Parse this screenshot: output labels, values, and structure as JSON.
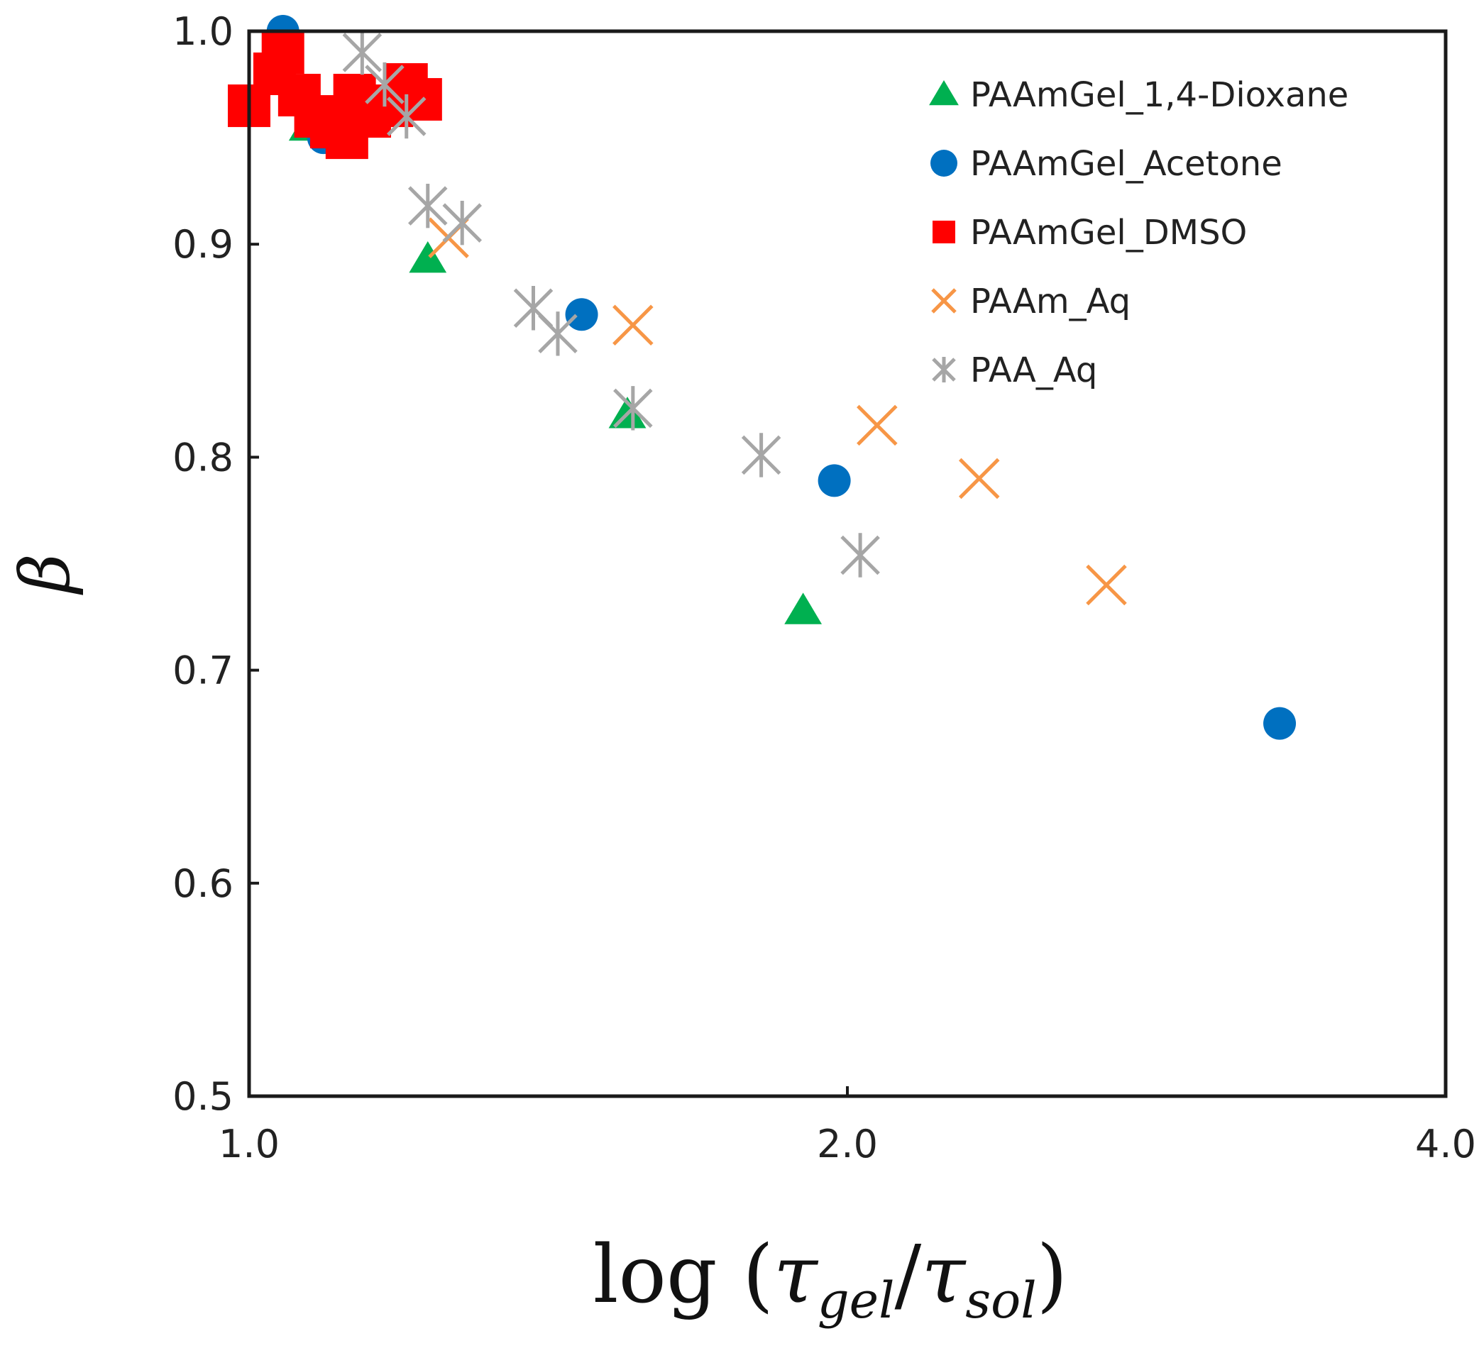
{
  "chart_data": {
    "type": "scatter",
    "x_scale": "log",
    "xlim": [
      1.0,
      4.0
    ],
    "ylim": [
      0.5,
      1.0
    ],
    "x_ticks": [
      1.0,
      2.0,
      4.0
    ],
    "x_tick_labels": [
      "1.0",
      "2.0",
      "4.0"
    ],
    "y_ticks": [
      0.5,
      0.6,
      0.7,
      0.8,
      0.9,
      1.0
    ],
    "y_tick_labels": [
      "0.5",
      "0.6",
      "0.7",
      "0.8",
      "0.9",
      "1.0"
    ],
    "xlabel": {
      "prefix": "log (",
      "tau1": "τ",
      "sub1": "gel",
      "slash": "/",
      "tau2": "τ",
      "sub2": "sol",
      "suffix": ")"
    },
    "ylabel": "β",
    "legend_position": "top-right",
    "series": [
      {
        "name": "PAAmGel_1,4-Dioxane",
        "marker": "triangle",
        "color": "#00b050",
        "points": [
          [
            1.07,
            0.955
          ],
          [
            1.23,
            0.893
          ],
          [
            1.55,
            0.82
          ],
          [
            1.9,
            0.728
          ]
        ]
      },
      {
        "name": "PAAmGel_Acetone",
        "marker": "circle",
        "color": "#0070c0",
        "points": [
          [
            1.04,
            1.0
          ],
          [
            1.09,
            0.95
          ],
          [
            1.13,
            0.965
          ],
          [
            1.47,
            0.867
          ],
          [
            1.97,
            0.789
          ],
          [
            3.3,
            0.675
          ]
        ]
      },
      {
        "name": "PAAmGel_DMSO",
        "marker": "square",
        "color": "#ff0000",
        "points": [
          [
            1.0,
            0.965
          ],
          [
            1.03,
            0.98
          ],
          [
            1.04,
            0.99
          ],
          [
            1.06,
            0.97
          ],
          [
            1.08,
            0.96
          ],
          [
            1.1,
            0.955
          ],
          [
            1.12,
            0.95
          ],
          [
            1.13,
            0.97
          ],
          [
            1.15,
            0.96
          ],
          [
            1.18,
            0.965
          ],
          [
            1.2,
            0.975
          ],
          [
            1.22,
            0.968
          ]
        ]
      },
      {
        "name": "PAAm_Aq",
        "marker": "x",
        "color": "#f79646",
        "points": [
          [
            1.26,
            0.903
          ],
          [
            1.56,
            0.862
          ],
          [
            2.07,
            0.815
          ],
          [
            2.33,
            0.79
          ],
          [
            2.7,
            0.74
          ]
        ]
      },
      {
        "name": "PAA_Aq",
        "marker": "asterisk",
        "color": "#a6a6a6",
        "points": [
          [
            1.14,
            0.99
          ],
          [
            1.17,
            0.975
          ],
          [
            1.2,
            0.96
          ],
          [
            1.23,
            0.918
          ],
          [
            1.28,
            0.91
          ],
          [
            1.39,
            0.87
          ],
          [
            1.43,
            0.858
          ],
          [
            1.56,
            0.823
          ],
          [
            1.81,
            0.801
          ],
          [
            2.03,
            0.754
          ]
        ]
      }
    ]
  }
}
